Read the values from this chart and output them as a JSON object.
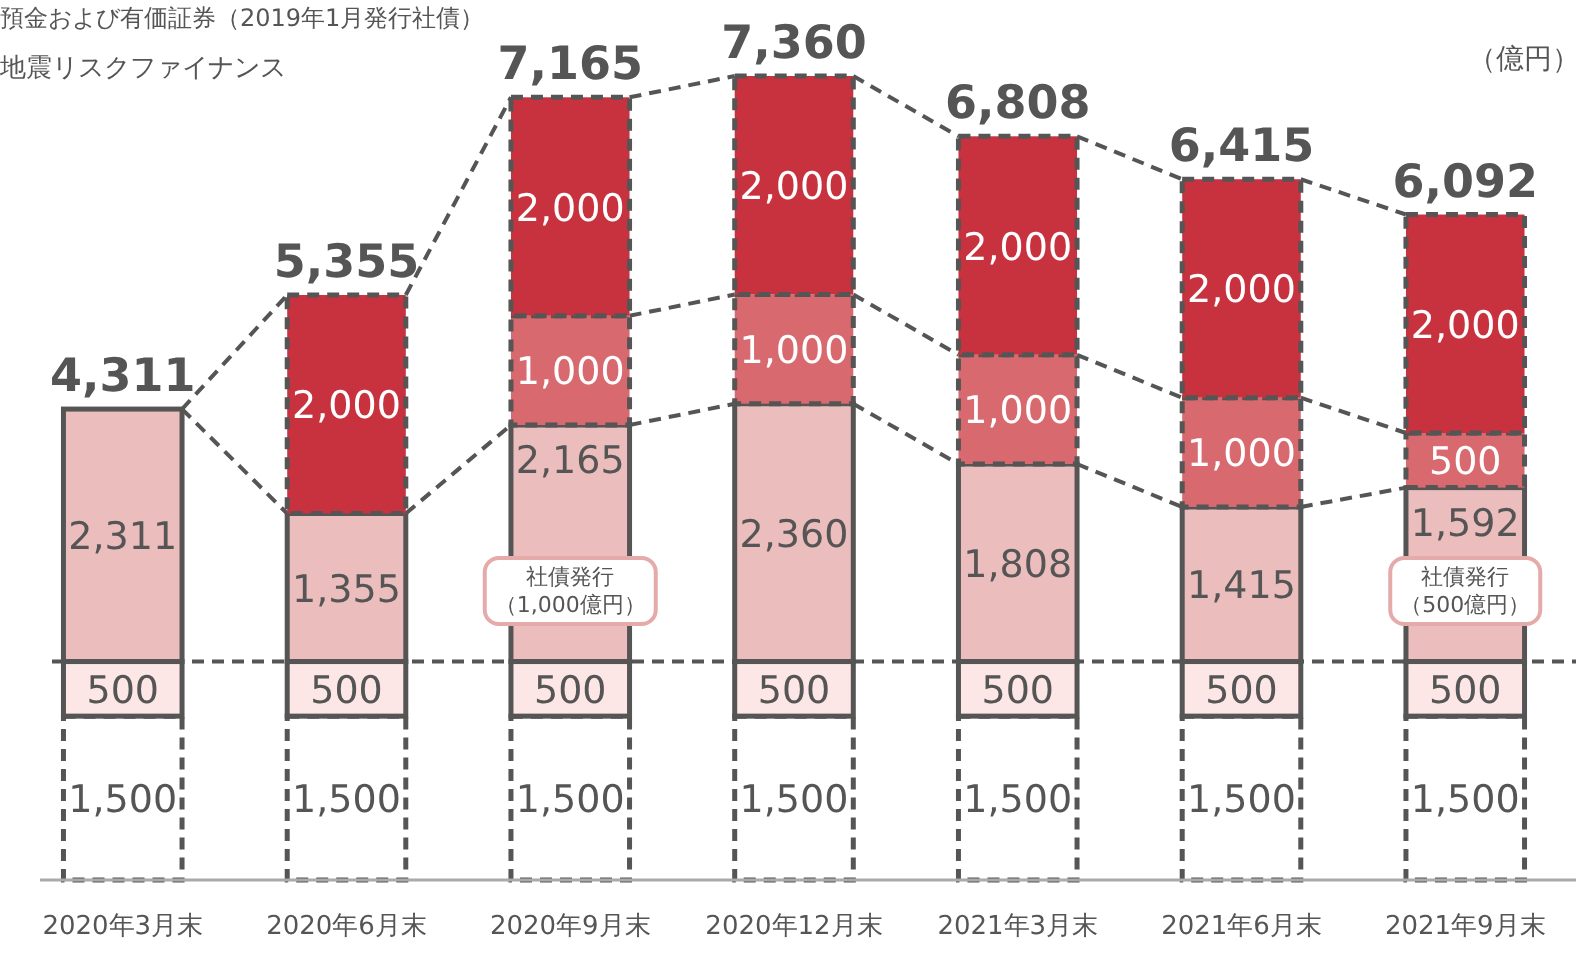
{
  "chart_data": {
    "type": "bar",
    "stacked": true,
    "tick_labels": "x",
    "categories": [
      "2020年3月末",
      "2020年6月末",
      "2020年9月末",
      "2020年12月末",
      "2021年3月末",
      "2021年6月末",
      "2021年9月末"
    ],
    "series": [
      {
        "color": "#ffffff",
        "line_style": "dashed",
        "values": [
          1500,
          1500,
          1500,
          1500,
          1500,
          1500,
          1500
        ],
        "value_labels": [
          "1,500",
          "1,500",
          "1,500",
          "1,500",
          "1,500",
          "1,500",
          "1,500"
        ]
      },
      {
        "color": "#fde6e6",
        "line_style": "solid",
        "values": [
          500,
          500,
          500,
          500,
          500,
          500,
          500
        ],
        "value_labels": [
          "500",
          "500",
          "500",
          "500",
          "500",
          "500",
          "500"
        ]
      },
      {
        "color": "#ecbdbd",
        "line_style": "solid",
        "values": [
          2311,
          1355,
          2165,
          2360,
          1808,
          1415,
          1592
        ],
        "value_labels": [
          "2,311",
          "1,355",
          "2,165",
          "2,360",
          "1,808",
          "1,415",
          "1,592"
        ]
      },
      {
        "color": "#d8696f",
        "line_style": "dashed",
        "values": [
          null,
          null,
          1000,
          1000,
          1000,
          1000,
          500
        ],
        "value_labels": [
          null,
          null,
          "1,000",
          "1,000",
          "1,000",
          "1,000",
          "500"
        ]
      },
      {
        "color": "#c8323e",
        "line_style": "dashed",
        "values": [
          null,
          2000,
          2000,
          2000,
          2000,
          2000,
          2000
        ],
        "value_labels": [
          null,
          "2,000",
          "2,000",
          "2,000",
          "2,000",
          "2,000",
          "2,000"
        ]
      }
    ],
    "totals": [
      "4,311",
      "5,355",
      "7,165",
      "7,360",
      "6,808",
      "6,415",
      "6,092"
    ],
    "ref_lines": [
      {
        "axis": "y",
        "value": 2000,
        "label": null,
        "color": "#555555",
        "line_style": "dashed"
      }
    ],
    "annotations": [
      "預金および有価証券（2019年1月発行社債）",
      "地震リスクファイナンス",
      "（億円）",
      "社債発行（1,000億円）",
      "社債発行（500億円）"
    ]
  }
}
